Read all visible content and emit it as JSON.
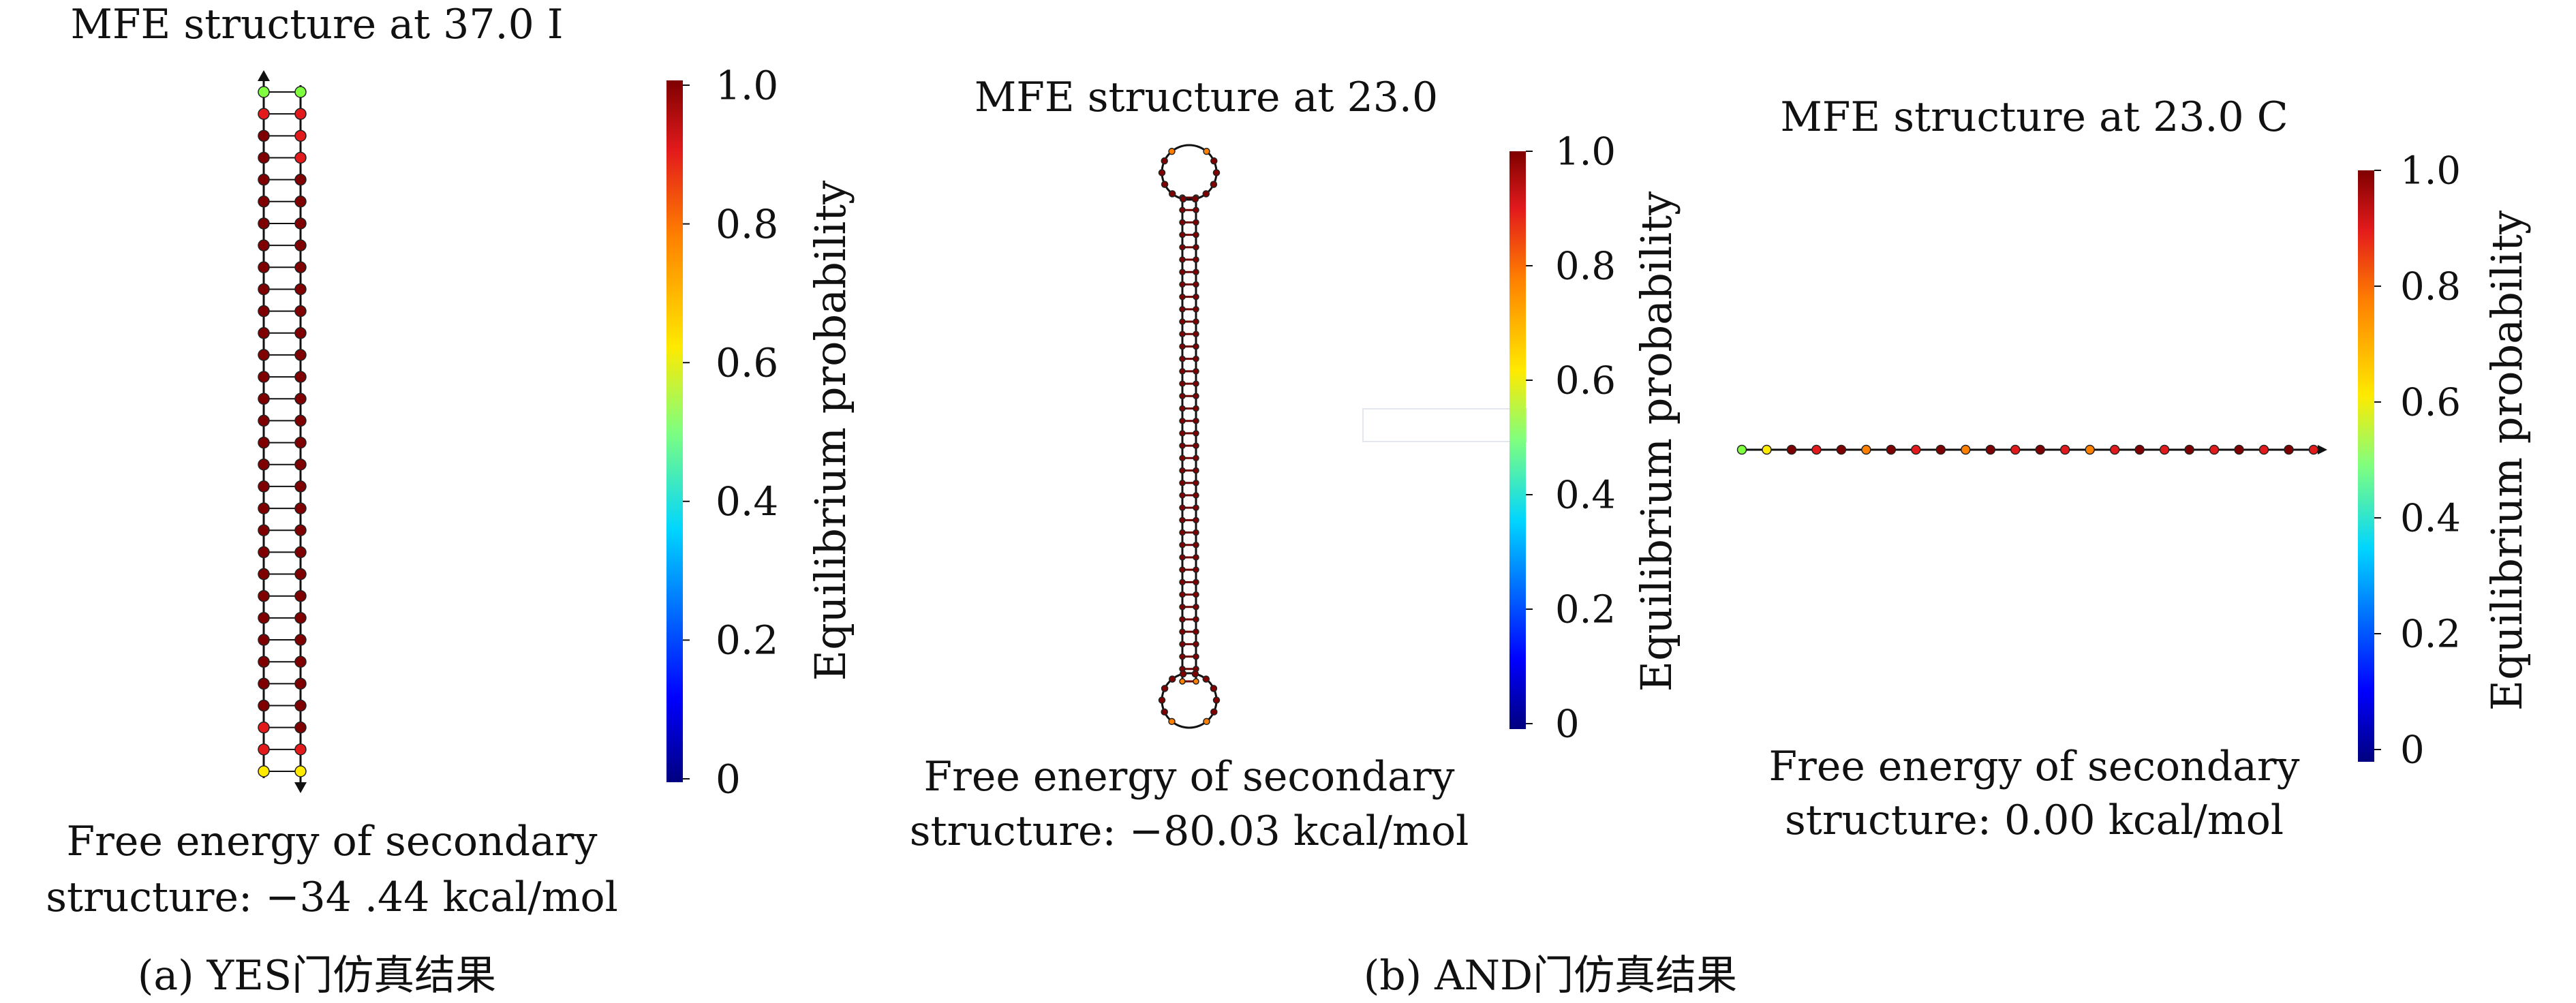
{
  "panels": {
    "a": {
      "title": "MFE structure at 37.0 I",
      "energy_line1": "Free energy of secondary",
      "energy_line2": "structure: −34 .44 kcal/mol"
    },
    "b1": {
      "title": "MFE structure at 23.0",
      "energy_line1": "Free energy of secondary",
      "energy_line2": "structure: −80.03 kcal/mol"
    },
    "b2": {
      "title": "MFE structure at 23.0 C",
      "energy_line1": "Free energy of secondary",
      "energy_line2": "structure: 0.00 kcal/mol"
    }
  },
  "colorbar": {
    "label": "Equilibrium probability",
    "ticks": [
      "1.0",
      "0.8",
      "0.6",
      "0.4",
      "0.2",
      "0"
    ]
  },
  "captions": {
    "a": "(a) YES门仿真结果",
    "b": "(b) AND门仿真结果"
  },
  "colors": {
    "high_probability": "#7f0000",
    "red": "#e31a1c",
    "orange": "#ff7f00",
    "yellow": "#ffea00",
    "green": "#7fff3f",
    "cyan": "#00d5ff",
    "blue": "#0000ff",
    "low_probability": "#00007f"
  }
}
